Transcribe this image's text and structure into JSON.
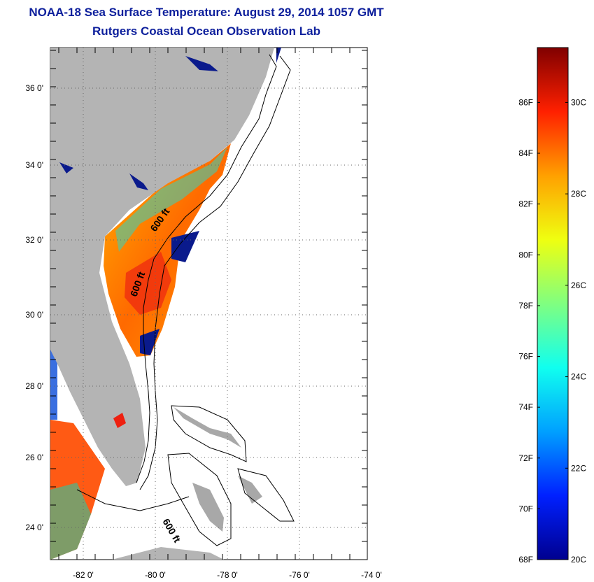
{
  "header": {
    "title": "NOAA-18 Sea Surface Temperature:  August 29, 2014 1057 GMT",
    "subtitle": "Rutgers Coastal Ocean Observation Lab"
  },
  "map": {
    "lat_labels": [
      "36 0'",
      "34 0'",
      "32 0'",
      "30 0'",
      "28 0'",
      "26 0'",
      "24 0'"
    ],
    "lon_labels": [
      "-82 0'",
      "-80 0'",
      "-78 0'",
      "-76 0'",
      "-74 0'"
    ],
    "contour_labels": [
      "600 ft",
      "600 ft",
      "600 ft"
    ],
    "colors": {
      "land": "#b4b4b4",
      "lake": "#0a1a8c",
      "contour": "#000000"
    }
  },
  "colorbar": {
    "fahrenheit_labels": [
      "86F",
      "84F",
      "82F",
      "80F",
      "78F",
      "76F",
      "74F",
      "72F",
      "70F",
      "68F"
    ],
    "celsius_labels": [
      "30C",
      "28C",
      "26C",
      "24C",
      "22C",
      "20C"
    ],
    "range_celsius": [
      20,
      31.2
    ],
    "colormap": [
      "#00008f",
      "#0020ff",
      "#00a0ff",
      "#10ffef",
      "#80ff80",
      "#efff10",
      "#ffa000",
      "#ff2000",
      "#800000"
    ]
  }
}
